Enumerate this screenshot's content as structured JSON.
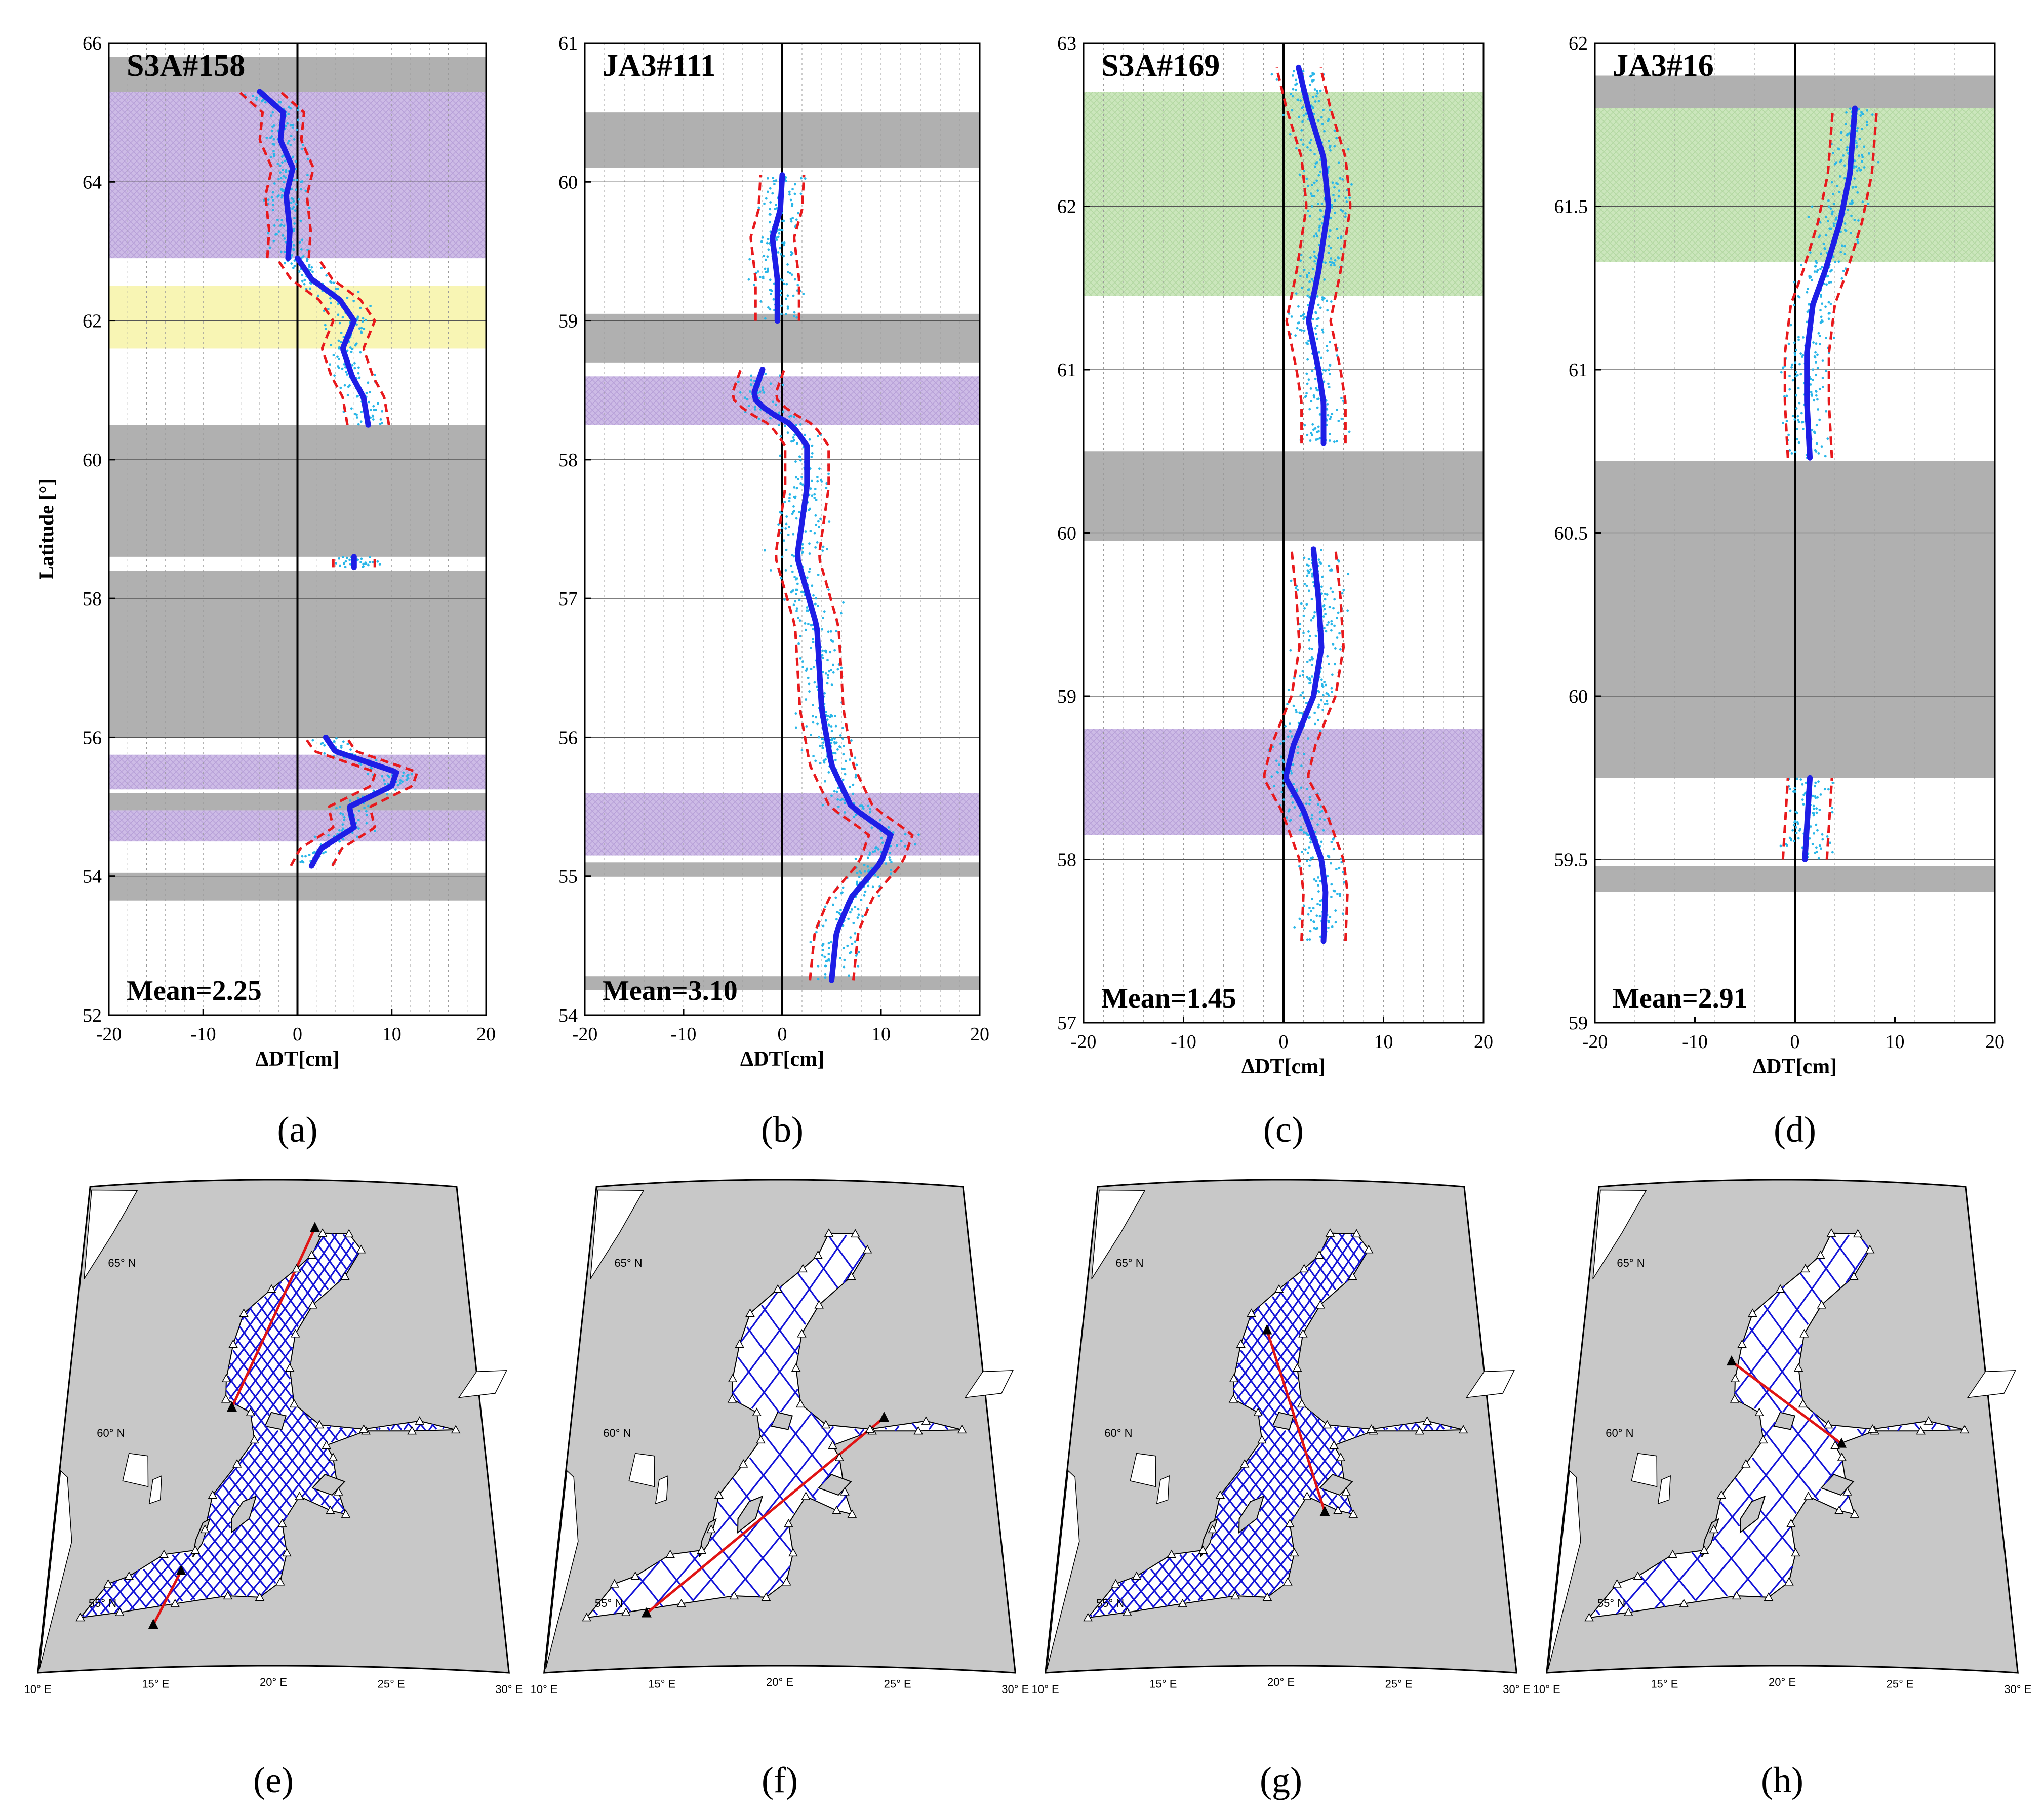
{
  "figure": {
    "panel_labels": [
      "(a)",
      "(b)",
      "(c)",
      "(d)",
      "(e)",
      "(f)",
      "(g)",
      "(h)"
    ]
  },
  "colors": {
    "gray_band": "#b0b0b0",
    "purple_band": "#c9b6e3",
    "yellow_band": "#f8f5b4",
    "green_band": "#c6e3b5",
    "scatter": "#29b6e8",
    "mean_line": "#1e1ee6",
    "bound_line": "#e8191c",
    "land": "#c8c8c8",
    "sea": "#ffffff",
    "track": "#1414d8",
    "track_highlight": "#e01414"
  },
  "chart_data": [
    {
      "id": "a",
      "type": "scatter",
      "title": "S3A#158",
      "mean_label": "Mean=2.25",
      "xlabel": "ΔDT[cm]",
      "ylabel": "Latitude [°]",
      "xlim": [
        -20,
        20
      ],
      "ylim": [
        52,
        66
      ],
      "xticks": [
        -20,
        -10,
        0,
        10,
        20
      ],
      "xtick_labels": [
        "-20",
        "-10",
        "0",
        "10",
        "20"
      ],
      "yticks": [
        52,
        54,
        56,
        58,
        60,
        62,
        64,
        66
      ],
      "ytick_labels": [
        "52",
        "54",
        "56",
        "58",
        "60",
        "62",
        "64",
        "66"
      ],
      "bands": [
        {
          "kind": "gray",
          "y": [
            65.3,
            65.8
          ]
        },
        {
          "kind": "purple",
          "y": [
            62.9,
            65.3
          ]
        },
        {
          "kind": "yellow",
          "y": [
            61.6,
            62.5
          ]
        },
        {
          "kind": "gray",
          "y": [
            58.6,
            60.5
          ]
        },
        {
          "kind": "gray",
          "y": [
            56.0,
            58.4
          ]
        },
        {
          "kind": "purple",
          "y": [
            55.25,
            55.75
          ]
        },
        {
          "kind": "gray",
          "y": [
            54.95,
            55.2
          ]
        },
        {
          "kind": "purple",
          "y": [
            54.5,
            54.95
          ]
        },
        {
          "kind": "gray",
          "y": [
            53.65,
            54.05
          ]
        }
      ],
      "mean_series": [
        {
          "lat": [
            62.9,
            63.3,
            63.8,
            64.2,
            64.6,
            65.0,
            65.3
          ],
          "dt": [
            -1.0,
            -0.8,
            -1.2,
            -0.5,
            -1.8,
            -1.5,
            -4.0
          ]
        },
        {
          "lat": [
            60.5,
            60.9,
            61.2,
            61.6,
            62.0,
            62.3,
            62.6,
            62.9
          ],
          "dt": [
            7.5,
            7.0,
            5.8,
            4.8,
            6.0,
            4.5,
            1.5,
            0.0
          ]
        },
        {
          "lat": [
            58.45,
            58.6
          ],
          "dt": [
            6.0,
            6.0
          ]
        },
        {
          "lat": [
            54.15,
            54.4,
            54.7,
            55.0,
            55.3,
            55.5,
            55.8,
            56.0
          ],
          "dt": [
            1.5,
            2.5,
            6.0,
            5.5,
            10.0,
            10.5,
            4.0,
            3.0
          ]
        }
      ]
    },
    {
      "id": "b",
      "type": "scatter",
      "title": "JA3#111",
      "mean_label": "Mean=3.10",
      "xlabel": "ΔDT[cm]",
      "ylabel": "",
      "xlim": [
        -20,
        20
      ],
      "ylim": [
        54,
        61
      ],
      "xticks": [
        -20,
        -10,
        0,
        10,
        20
      ],
      "xtick_labels": [
        "-20",
        "-10",
        "0",
        "10",
        "20"
      ],
      "yticks": [
        54,
        55,
        56,
        57,
        58,
        59,
        60,
        61
      ],
      "ytick_labels": [
        "54",
        "55",
        "56",
        "57",
        "58",
        "59",
        "60",
        "61"
      ],
      "bands": [
        {
          "kind": "gray",
          "y": [
            60.1,
            60.5
          ]
        },
        {
          "kind": "gray",
          "y": [
            58.7,
            59.05
          ]
        },
        {
          "kind": "purple",
          "y": [
            58.25,
            58.6
          ]
        },
        {
          "kind": "purple",
          "y": [
            55.15,
            55.6
          ]
        },
        {
          "kind": "gray",
          "y": [
            55.0,
            55.1
          ]
        },
        {
          "kind": "gray",
          "y": [
            54.18,
            54.28
          ]
        }
      ],
      "mean_series": [
        {
          "lat": [
            59.0,
            59.3,
            59.6,
            59.8,
            60.05
          ],
          "dt": [
            -0.5,
            -0.5,
            -1.0,
            -0.2,
            0.0
          ]
        },
        {
          "lat": [
            54.25,
            54.6,
            54.85,
            55.1,
            55.3,
            55.5,
            55.8,
            56.2,
            56.8,
            57.3,
            57.8,
            58.1,
            58.25,
            58.35,
            58.45,
            58.55,
            58.65
          ],
          "dt": [
            5.0,
            5.5,
            7.0,
            10.0,
            11.0,
            7.0,
            5.0,
            4.0,
            3.5,
            1.5,
            2.5,
            2.5,
            1.0,
            -1.5,
            -3.0,
            -2.5,
            -2.0
          ]
        }
      ]
    },
    {
      "id": "c",
      "type": "scatter",
      "title": "S3A#169",
      "mean_label": "Mean=1.45",
      "xlabel": "ΔDT[cm]",
      "ylabel": "",
      "xlim": [
        -20,
        20
      ],
      "ylim": [
        57,
        63
      ],
      "xticks": [
        -20,
        -10,
        0,
        10,
        20
      ],
      "xtick_labels": [
        "-20",
        "-10",
        "0",
        "10",
        "20"
      ],
      "yticks": [
        57,
        58,
        59,
        60,
        61,
        62,
        63
      ],
      "ytick_labels": [
        "57",
        "58",
        "59",
        "60",
        "61",
        "62",
        "63"
      ],
      "bands": [
        {
          "kind": "green",
          "y": [
            61.45,
            62.7
          ]
        },
        {
          "kind": "gray",
          "y": [
            59.95,
            60.5
          ]
        },
        {
          "kind": "purple",
          "y": [
            58.15,
            58.8
          ]
        }
      ],
      "mean_series": [
        {
          "lat": [
            60.55,
            60.8,
            61.0,
            61.3,
            61.6,
            62.0,
            62.3,
            62.6,
            62.85
          ],
          "dt": [
            4.0,
            4.0,
            3.5,
            2.5,
            3.5,
            4.5,
            4.0,
            2.5,
            1.5
          ]
        },
        {
          "lat": [
            57.5,
            57.8,
            58.0,
            58.3,
            58.5,
            58.7,
            59.0,
            59.3,
            59.6,
            59.9
          ],
          "dt": [
            4.0,
            4.2,
            3.8,
            2.0,
            0.2,
            1.0,
            3.0,
            3.8,
            3.5,
            3.0
          ]
        }
      ]
    },
    {
      "id": "d",
      "type": "scatter",
      "title": "JA3#16",
      "mean_label": "Mean=2.91",
      "xlabel": "ΔDT[cm]",
      "ylabel": "",
      "xlim": [
        -20,
        20
      ],
      "ylim": [
        59,
        62
      ],
      "xticks": [
        -20,
        -10,
        0,
        10,
        20
      ],
      "xtick_labels": [
        "-20",
        "-10",
        "0",
        "10",
        "20"
      ],
      "yticks": [
        59,
        59.5,
        60,
        60.5,
        61,
        61.5,
        62
      ],
      "ytick_labels": [
        "59",
        "59.5",
        "60",
        "60.5",
        "61",
        "61.5",
        "62"
      ],
      "bands": [
        {
          "kind": "gray",
          "y": [
            61.8,
            61.9
          ]
        },
        {
          "kind": "green",
          "y": [
            61.33,
            61.8
          ]
        },
        {
          "kind": "gray",
          "y": [
            59.75,
            60.72
          ]
        },
        {
          "kind": "gray",
          "y": [
            59.4,
            59.48
          ]
        }
      ],
      "mean_series": [
        {
          "lat": [
            60.73,
            60.9,
            61.05,
            61.2,
            61.3,
            61.45,
            61.6,
            61.8
          ],
          "dt": [
            1.5,
            1.2,
            1.2,
            1.8,
            3.0,
            4.5,
            5.5,
            6.0
          ]
        },
        {
          "lat": [
            59.5,
            59.6,
            59.75
          ],
          "dt": [
            1.0,
            1.2,
            1.5
          ]
        }
      ]
    }
  ],
  "maps": [
    {
      "id": "e",
      "lat_labels": [
        "65° N",
        "60° N",
        "55° N"
      ],
      "lon_labels": [
        "10° E",
        "15° E",
        "20° E",
        "25° E",
        "30° E"
      ],
      "spacing_deg": 0.85,
      "highlight": [
        [
          [
            14.8,
            54.25
          ],
          [
            15.9,
            55.8
          ]
        ],
        [
          [
            18.0,
            60.55
          ],
          [
            22.2,
            65.8
          ]
        ]
      ]
    },
    {
      "id": "f",
      "lat_labels": [
        "65° N",
        "60° N",
        "55° N"
      ],
      "lon_labels": [
        "10° E",
        "15° E",
        "20° E",
        "25° E",
        "30° E"
      ],
      "spacing_deg": 2.2,
      "highlight": [
        [
          [
            14.2,
            54.6
          ],
          [
            25.0,
            60.3
          ]
        ]
      ]
    },
    {
      "id": "g",
      "lat_labels": [
        "65° N",
        "60° N",
        "55° N"
      ],
      "lon_labels": [
        "10° E",
        "15° E",
        "20° E",
        "25° E",
        "30° E"
      ],
      "spacing_deg": 0.85,
      "highlight": [
        [
          [
            19.3,
            62.8
          ],
          [
            22.0,
            57.5
          ]
        ]
      ]
    },
    {
      "id": "h",
      "lat_labels": [
        "65° N",
        "60° N",
        "55° N"
      ],
      "lon_labels": [
        "10° E",
        "15° E",
        "20° E",
        "25° E",
        "30° E"
      ],
      "spacing_deg": 2.2,
      "highlight": [
        [
          [
            17.5,
            61.9
          ],
          [
            22.8,
            59.5
          ]
        ]
      ]
    }
  ]
}
